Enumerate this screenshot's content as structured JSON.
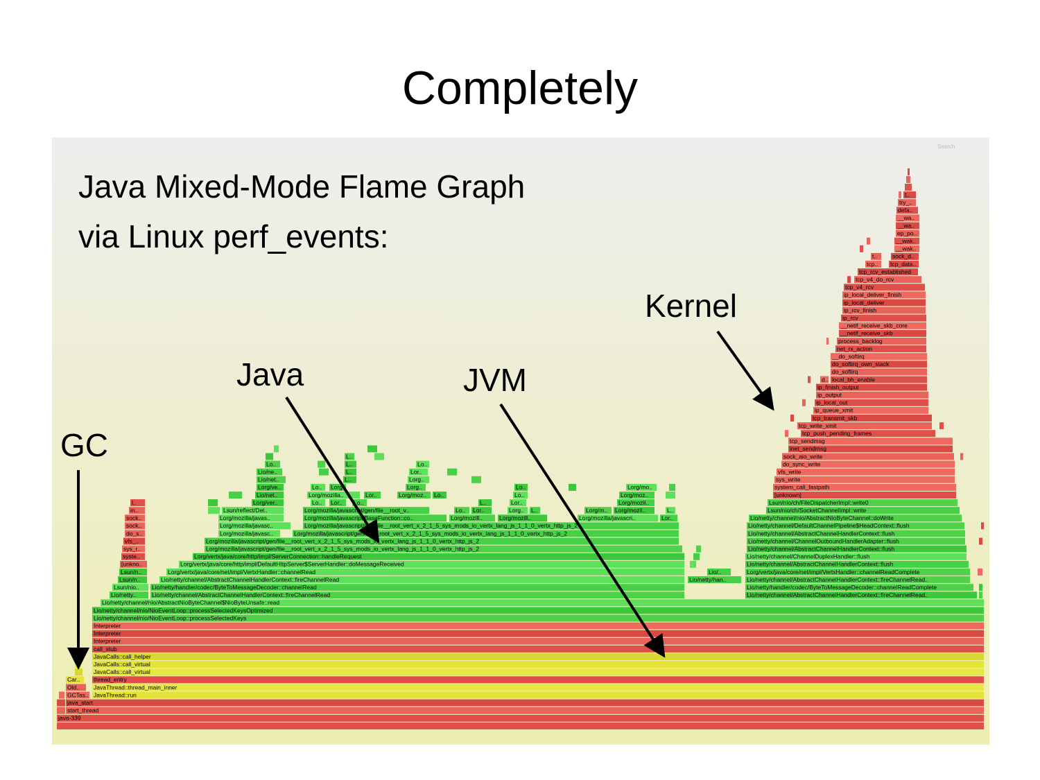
{
  "title": "Completely",
  "subtitle": [
    "Java Mixed-Mode Flame Graph",
    "via Linux perf_events:"
  ],
  "search": "Search",
  "annotations": {
    "kernel": "Kernel",
    "java": "Java",
    "jvm": "JVM",
    "gc": "GC"
  },
  "frames": [
    "java-339",
    "start_thread",
    "java_start",
    "GCTas..",
    "JavaThread::run",
    "Old..",
    "JavaThread::thread_main_inner",
    "Car..",
    "thread_entry",
    "JavaCalls::call_virtual",
    "JavaCalls::call_virtual",
    "JavaCalls::call_helper",
    "call_stub",
    "Interpreter",
    "Interpreter",
    "Interpreter",
    "Lio/netty/channel/nio/NioEventLoop::processSelectedKeys",
    "Lio/netty/channel/nio/NioEventLoop::processSelectedKeysOptimized",
    "Lio/netty/channel/nio/AbstractNioByteChannel$NioByteUnsafe::read",
    "Lio/netty..",
    "Lio/netty/channel/AbstractChannelHandlerContext::fireChannelRead",
    "Lio/netty/channel/AbstractChannelHandlerContext::fireChannelRead..",
    "Lsun/nio..",
    "Lio/netty/handler/codec/ByteToMessageDecoder::channelRead",
    "Lio/netty/handler/codec/ByteToMessageDecoder::channelReadComplete",
    "Lsun/n..",
    "Lio/netty/channel/AbstractChannelHandlerContext::fireChannelRead",
    "Lio/netty/han..",
    "Lio/netty/channel/AbstractChannelHandlerContext::fireChannelRead..",
    "Lsun/n..",
    "Lorg/vertx/java/core/net/impl/VertxHandler::channelRead",
    "Lio/..",
    "Lorg/vertx/java/core/net/impl/VertxHandler::channelReadComplete",
    "[unkno..",
    "Lorg/vertx/java/core/http/impl/DefaultHttpServer$ServerHandler::doMessageReceived",
    "Lio/netty/channel/AbstractChannelHandlerContext::flush",
    "syste..",
    "Lorg/vertx/java/core/http/impl/ServerConnection::handleRequest",
    "Lio/netty/channel/ChannelDuplexHandler::flush",
    "sys_r..",
    "Lorg/mozilla/javascript/gen/file__root_vert_x_2_1_5_sys_mods_io_vertx_lang_js_1_1_0_vertx_http_js_2",
    "Lio/netty/channel/AbstractChannelHandlerContext::flush",
    "vfs_..",
    "Lorg/mozilla/javascript/gen/file__root_vert_x_2_1_5_sys_mods_io_vertx_lang_js_1_1_0_vertx_http_js_2",
    "Lio/netty/channel/ChannelOutboundHandlerAdapter::flush",
    "do_s..",
    "Lorg/mozilla/javasc..",
    "Lorg/mozilla/javascript/gen/file__root_vert_x_2_1_5_sys_mods_io_vertx_lang_js_1_1_0_vertx_http_js_2",
    "Lio/netty/channel/AbstractChannelHandlerContext::flush",
    "sock..",
    "Lorg/mozilla/javasc..",
    "Lorg/mozilla/javascript/gen/file__root_vert_x_2_1_5_sys_mods_io_vertx_lang_js_1_1_0_vertx_http_js_2",
    "Lio/netty/channel/DefaultChannelPipeline$HeadContext::flush",
    "sock..",
    "Lorg/mozilla/javas..",
    "Lorg/mozilla/javascript/BaseFunction::co..",
    "Lorg/mozill..",
    "Lorg/mozill..",
    "Lorg/mozilla/javascri..",
    "Lor..",
    "Lio/netty/channel/nio/AbstractNioByteChannel::doWrite",
    "in..",
    "Lsun/reflect/Del..",
    "Lorg/mozilla/javascript/gen/file__root_v..",
    "Lo..",
    "Lor..",
    "Lorg..",
    "L..",
    "Lorg/m..",
    "Lorg/mozil..",
    "L..",
    "Lsun/nio/ch/SocketChannelImpl::write",
    "l..",
    "Lorg/ver..",
    "Lo..",
    "Lor..",
    "Lo..",
    "L..",
    "Lor..",
    "Lorg/mozil..",
    "Lsun/nio/ch/FileDispatcherImpl::write0",
    "Lio/net..",
    "Lorg/mozilla..",
    "Lor..",
    "Lorg/moz..",
    "Lo..",
    "Lo..",
    "Lorg/moz..",
    "[unknown]",
    "Lorg/ve..",
    "Lo..",
    "Lorg..",
    "Lorg..",
    "Lo..",
    "Lorg/mo..",
    "system_call_fastpath",
    "Lio/net..",
    "L..",
    "Lorg..",
    "sys_write",
    "Lio/ne..",
    "L..",
    "Lor..",
    "vfs_write",
    "Lo..",
    "L..",
    "Lo..",
    "do_sync_write",
    "L..",
    "sock_aio_write",
    "inet_sendmsg",
    "tcp_sendmsg",
    "tcp_push_pending_frames",
    "tcp_write_xmit",
    "tcp_transmit_skb",
    "ip_queue_xmit",
    "ip_local_out",
    "ip_output",
    "ip_finish_output",
    "d..",
    "local_bh_enable",
    "do_softirq",
    "do_softirq_own_stack",
    "__do_softirq",
    "net_rx_action",
    "process_backlog",
    "__netif_receive_skb",
    "__netif_receive_skb_core",
    "ip_rcv",
    "ip_rcv_finish",
    "ip_local_deliver",
    "ip_local_deliver_finish",
    "tcp_v4_rcv",
    "tcp_v4_do_rcv",
    "tcp_rcv_established",
    "tcp..",
    "tcp_data..",
    "t..",
    "sock_d..",
    "__wak..",
    "__wak..",
    "ep_po..",
    "__wa..",
    "__wa..",
    "defa..",
    "try_..",
    "t.."
  ]
}
